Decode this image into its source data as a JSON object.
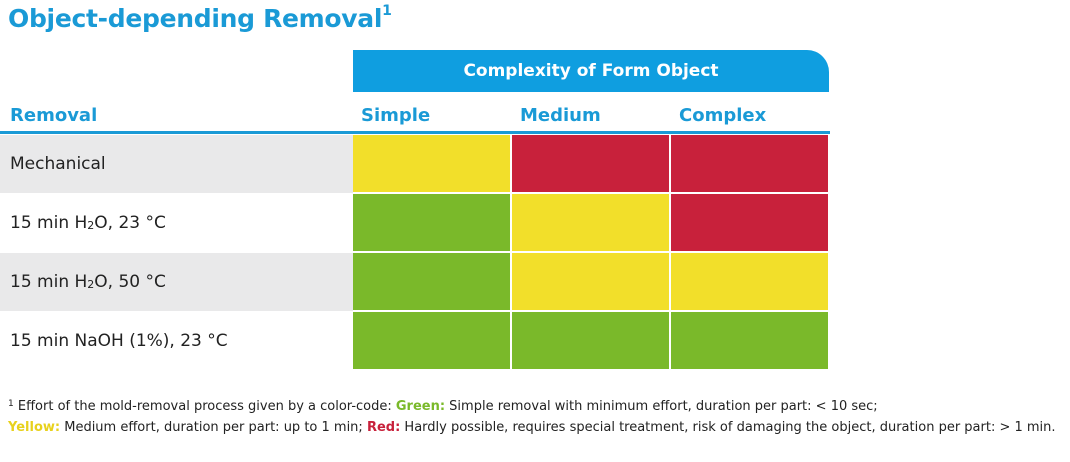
{
  "title": "Object-depending Removal",
  "title_sup": "1",
  "banner": "Complexity of Form Object",
  "headers": {
    "removal": "Removal",
    "simple": "Simple",
    "medium": "Medium",
    "complex": "Complex"
  },
  "rows": [
    {
      "pre": "Mechanical",
      "sub": "",
      "post": "",
      "cells": [
        "yellow",
        "red",
        "red"
      ]
    },
    {
      "pre": "15 min H",
      "sub": "2",
      "post": "O, 23 °C",
      "cells": [
        "green",
        "yellow",
        "red"
      ]
    },
    {
      "pre": "15 min H",
      "sub": "2",
      "post": "O, 50 °C",
      "cells": [
        "green",
        "yellow",
        "yellow"
      ]
    },
    {
      "pre": "15 min NaOH (1%), 23 °C",
      "sub": "",
      "post": "",
      "cells": [
        "green",
        "green",
        "green"
      ]
    }
  ],
  "colors": {
    "accent_blue": "#1a9ad6",
    "banner_blue": "#0f9ee0",
    "green": "#7ab92a",
    "yellow": "#f2df2a",
    "red": "#c8213b",
    "row_shade": "#e9e9ea"
  },
  "footnote": {
    "sup": "1",
    "intro": " Effort of the mold-removal process given by a color-code: ",
    "green_label": "Green:",
    "green_text": " Simple removal with minimum effort, duration per part: < 10 sec;",
    "yellow_label": "Yellow:",
    "yellow_text": " Medium effort, duration per part: up to 1 min; ",
    "red_label": "Red:",
    "red_text": " Hardly possible, requires special treatment, risk of damaging the object, duration per part: > 1 min."
  }
}
